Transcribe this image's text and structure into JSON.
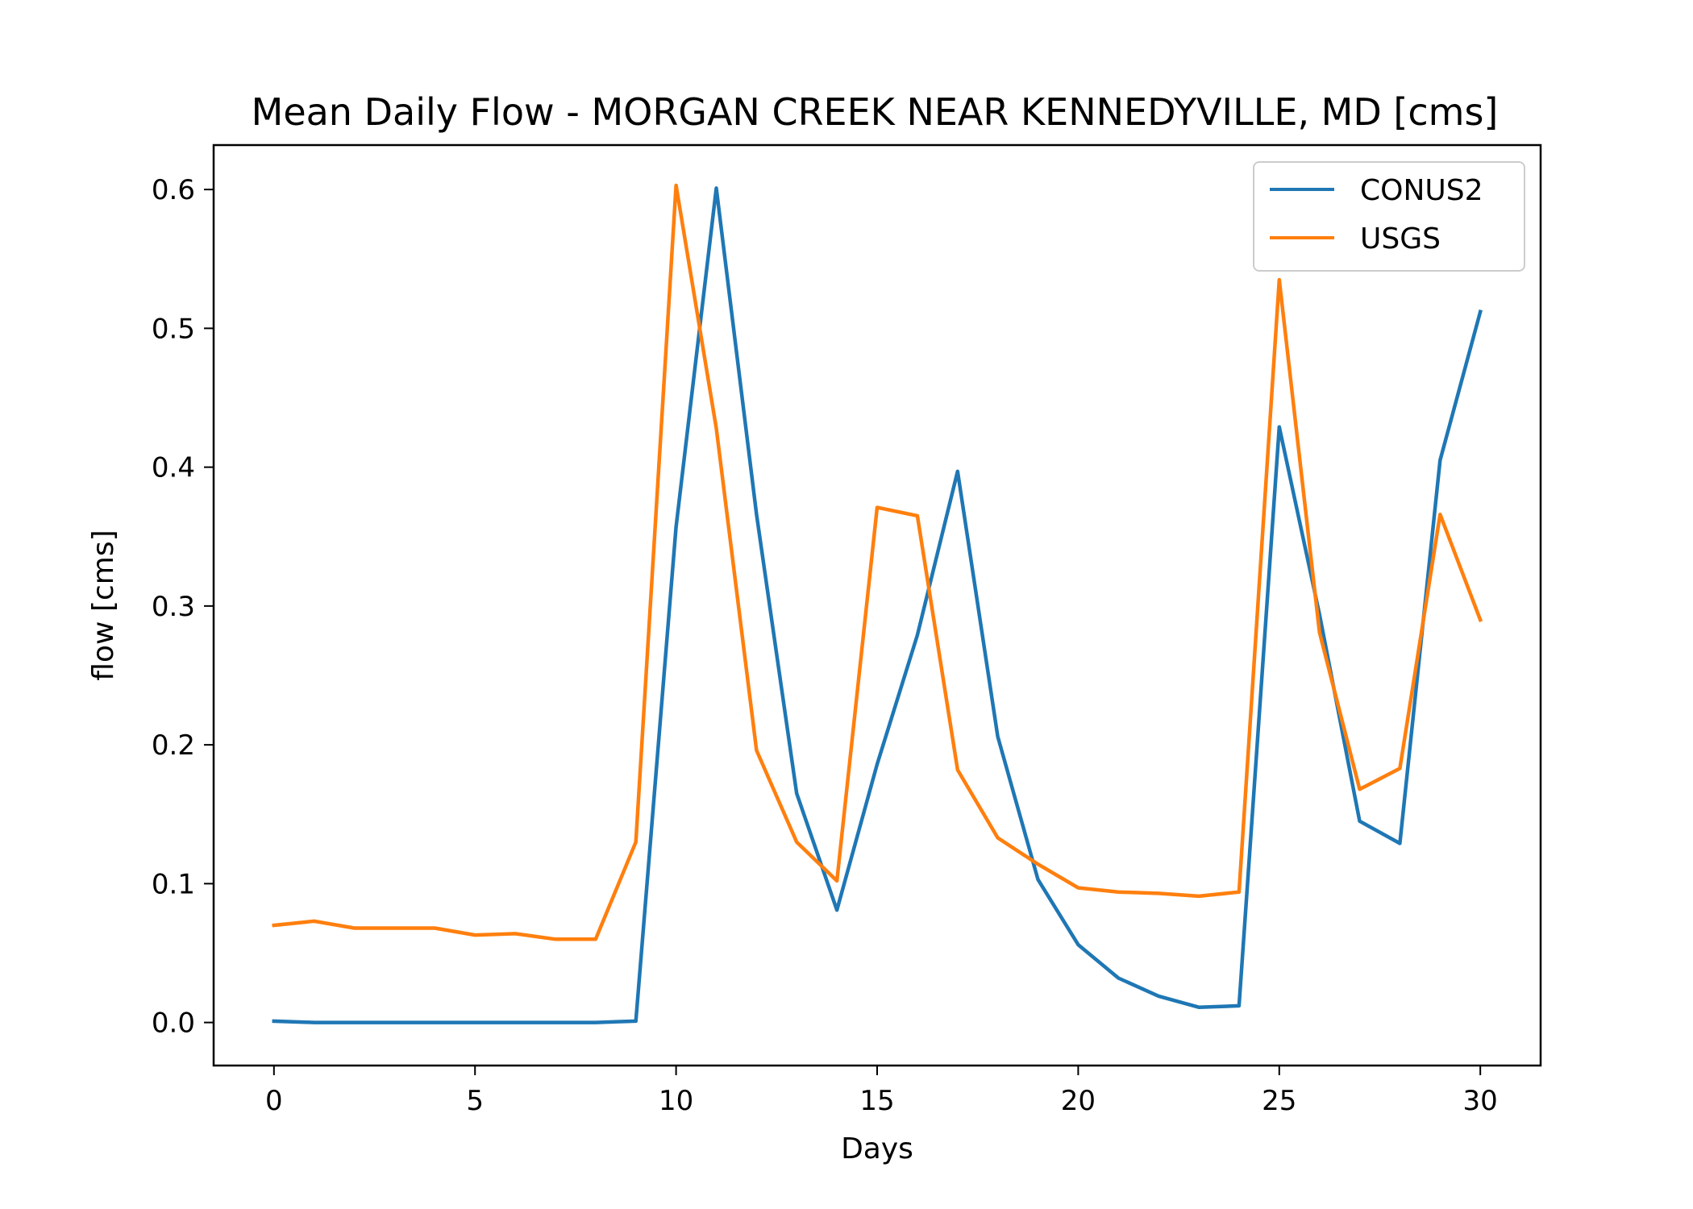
{
  "chart_data": {
    "type": "line",
    "title": "Mean Daily Flow - MORGAN CREEK NEAR KENNEDYVILLE, MD [cms]",
    "xlabel": "Days",
    "ylabel": "flow [cms]",
    "xlim": [
      -1.5,
      31.5
    ],
    "ylim": [
      -0.031,
      0.632
    ],
    "xticks": [
      0,
      5,
      10,
      15,
      20,
      25,
      30
    ],
    "xtick_labels": [
      "0",
      "5",
      "10",
      "15",
      "20",
      "25",
      "30"
    ],
    "yticks": [
      0.0,
      0.1,
      0.2,
      0.3,
      0.4,
      0.5,
      0.6
    ],
    "ytick_labels": [
      "0.0",
      "0.1",
      "0.2",
      "0.3",
      "0.4",
      "0.5",
      "0.6"
    ],
    "grid": false,
    "legend_position": "top-right",
    "x": [
      0,
      1,
      2,
      3,
      4,
      5,
      6,
      7,
      8,
      9,
      10,
      11,
      12,
      13,
      14,
      15,
      16,
      17,
      18,
      19,
      20,
      21,
      22,
      23,
      24,
      25,
      26,
      27,
      28,
      29,
      30
    ],
    "series": [
      {
        "name": "CONUS2",
        "color": "#1f77b4",
        "values": [
          0.001,
          0.0,
          0.0,
          0.0,
          0.0,
          0.0,
          0.0,
          0.0,
          0.0,
          0.001,
          0.357,
          0.601,
          0.366,
          0.165,
          0.081,
          0.186,
          0.279,
          0.397,
          0.206,
          0.103,
          0.056,
          0.032,
          0.019,
          0.011,
          0.012,
          0.429,
          0.294,
          0.145,
          0.129,
          0.405,
          0.512
        ]
      },
      {
        "name": "USGS",
        "color": "#ff7f0e",
        "values": [
          0.07,
          0.073,
          0.068,
          0.068,
          0.068,
          0.063,
          0.064,
          0.06,
          0.06,
          0.13,
          0.603,
          0.428,
          0.196,
          0.13,
          0.102,
          0.371,
          0.365,
          0.182,
          0.133,
          0.114,
          0.097,
          0.094,
          0.093,
          0.091,
          0.094,
          0.535,
          0.281,
          0.168,
          0.183,
          0.366,
          0.29
        ]
      }
    ]
  }
}
